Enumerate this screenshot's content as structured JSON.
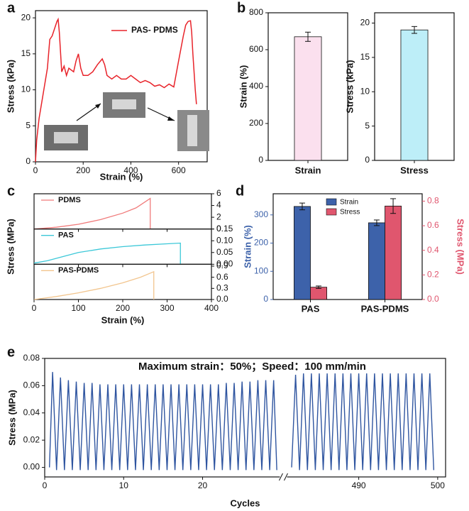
{
  "chart_data": [
    {
      "type": "line",
      "panel_label": "a",
      "xlabel": "Strain (%)",
      "ylabel": "Stress (kPa)",
      "xlim": [
        0,
        720
      ],
      "ylim": [
        0,
        21
      ],
      "xticks": [
        0,
        200,
        400,
        600
      ],
      "yticks": [
        0,
        5,
        10,
        15,
        20
      ],
      "legend": "upper right",
      "series": [
        {
          "name": "PAS- PDMS",
          "color": "#e8232a",
          "x": [
            0,
            5,
            15,
            30,
            50,
            60,
            70,
            80,
            90,
            95,
            100,
            110,
            120,
            130,
            140,
            160,
            170,
            180,
            190,
            200,
            220,
            240,
            260,
            280,
            290,
            300,
            320,
            340,
            360,
            380,
            400,
            420,
            440,
            460,
            480,
            500,
            520,
            540,
            560,
            580,
            600,
            620,
            630,
            640,
            650,
            655,
            660,
            670,
            675
          ],
          "values": [
            0,
            3,
            6,
            9,
            13,
            17,
            17.5,
            18.5,
            19.5,
            19.8,
            18,
            12.5,
            13.3,
            12,
            13,
            12.5,
            14,
            15,
            13,
            12,
            12,
            12.5,
            13.5,
            14.3,
            13.5,
            12,
            11.5,
            12,
            11.5,
            11.5,
            12,
            11.5,
            11,
            11.3,
            11,
            10.5,
            10.7,
            10.3,
            10.8,
            10.4,
            14,
            17.5,
            19,
            19.5,
            19.6,
            18,
            15,
            10,
            8
          ]
        }
      ]
    },
    {
      "type": "bar",
      "panel_label": "b",
      "ylabel": "Strain (%)",
      "categories": [
        "Strain"
      ],
      "values": [
        670
      ],
      "errors": [
        25
      ],
      "color": "#fbe0ee",
      "ylim": [
        0,
        800
      ],
      "yticks": [
        0,
        200,
        400,
        600,
        800
      ]
    },
    {
      "type": "bar",
      "ylabel": "Stress (kPa)",
      "categories": [
        "Stress"
      ],
      "values": [
        19
      ],
      "errors": [
        0.5
      ],
      "color": "#bdeef8",
      "ylim": [
        0,
        21.5
      ],
      "yticks": [
        0,
        5,
        10,
        15,
        20
      ]
    },
    {
      "type": "line_stack",
      "panel_label": "c",
      "xlabel": "Strain (%)",
      "ylabel": "Stress (MPa)",
      "xlim": [
        0,
        400
      ],
      "xticks": [
        0,
        100,
        200,
        300,
        400
      ],
      "subplots": [
        {
          "name": "PDMS",
          "color": "#f07a7a",
          "x": [
            0,
            50,
            100,
            150,
            200,
            230,
            262,
            262
          ],
          "values": [
            0,
            0.3,
            0.8,
            1.6,
            2.7,
            3.6,
            5.2,
            0
          ],
          "ylim": [
            0,
            6
          ],
          "yticks": [
            0,
            2,
            4,
            6
          ]
        },
        {
          "name": "PAS",
          "color": "#3cc8d8",
          "x": [
            0,
            30,
            60,
            100,
            150,
            200,
            250,
            300,
            330,
            330
          ],
          "values": [
            0.005,
            0.015,
            0.03,
            0.05,
            0.065,
            0.075,
            0.082,
            0.087,
            0.09,
            0
          ],
          "ylim": [
            0,
            0.15
          ],
          "yticks": [
            {
              "value": 0,
              "label": "0.00"
            },
            0.05,
            {
              "value": 0.1,
              "label": "0.10"
            },
            0.15
          ]
        },
        {
          "name": "PAS-PDMS",
          "color": "#f2c58e",
          "x": [
            0,
            50,
            100,
            150,
            200,
            240,
            270,
            270
          ],
          "values": [
            0,
            0.08,
            0.18,
            0.3,
            0.45,
            0.6,
            0.75,
            0
          ],
          "ylim": [
            0,
            0.95
          ],
          "yticks": [
            {
              "value": 0,
              "label": "0.0"
            },
            0.3,
            0.6,
            0.9
          ]
        }
      ]
    },
    {
      "type": "grouped_bar",
      "panel_label": "d",
      "ylabel": "Strain (%)",
      "y2label": "Stress (MPa)",
      "categories": [
        "PAS",
        "PAS-PDMS"
      ],
      "ylim": [
        0,
        375
      ],
      "yticks": [
        0,
        100,
        200,
        300
      ],
      "y2lim": [
        0,
        0.86
      ],
      "y2ticks": [
        {
          "value": 0,
          "label": "0.0"
        },
        0.2,
        0.4,
        0.6,
        0.8
      ],
      "legend": "upper center",
      "series": [
        {
          "name": "Strain",
          "color": "#3d62aa",
          "values": [
            330,
            272
          ],
          "errors": [
            12,
            10
          ]
        },
        {
          "name": "Stress",
          "color": "#e0566e",
          "values": [
            0.1,
            0.76
          ],
          "errors": [
            0.01,
            0.06
          ],
          "axis": "y2"
        }
      ]
    },
    {
      "type": "line",
      "panel_label": "e",
      "xlabel": "Cycles",
      "ylabel": "Stress (MPa)",
      "annotation": "Maximum strain：50%；Speed：100 mm/min",
      "axis_break": true,
      "xlim": [
        [
          0,
          29.7
        ],
        [
          481,
          501
        ]
      ],
      "xticks": [
        0,
        10,
        20,
        490,
        500
      ],
      "ylim": [
        -0.007,
        0.08
      ],
      "yticks": [
        {
          "value": 0,
          "label": "0.00"
        },
        0.02,
        0.04,
        0.06,
        {
          "value": 0.08,
          "label": "0.08"
        }
      ],
      "series": [
        {
          "color": "#2f55a0",
          "x": [
            0.6,
            1,
            1.5,
            2,
            2.5,
            3,
            3.5,
            4,
            4.5,
            5,
            5.5,
            6,
            6.5,
            7,
            7.5,
            8,
            8.5,
            9,
            9.5,
            10,
            10.5,
            11,
            11.5,
            12,
            12.5,
            13,
            13.5,
            14,
            14.5,
            15,
            15.5,
            16,
            16.5,
            17,
            17.5,
            18,
            18.5,
            19,
            19.5,
            20,
            20.5,
            21,
            21.5,
            22,
            22.5,
            23,
            23.5,
            24,
            24.5,
            25,
            25.5,
            26,
            26.5,
            27,
            27.5,
            28,
            28.5,
            29,
            29.4
          ],
          "values": [
            0,
            0.07,
            -0.002,
            0.066,
            -0.002,
            0.064,
            -0.002,
            0.063,
            -0.002,
            0.062,
            -0.002,
            0.062,
            -0.002,
            0.061,
            -0.002,
            0.061,
            -0.002,
            0.061,
            -0.002,
            0.061,
            -0.002,
            0.061,
            -0.002,
            0.061,
            -0.002,
            0.061,
            -0.002,
            0.061,
            -0.002,
            0.061,
            -0.002,
            0.061,
            -0.002,
            0.061,
            -0.002,
            0.061,
            -0.002,
            0.061,
            -0.002,
            0.061,
            -0.002,
            0.061,
            -0.002,
            0.061,
            -0.002,
            0.062,
            -0.002,
            0.062,
            -0.002,
            0.063,
            -0.002,
            0.063,
            -0.002,
            0.064,
            -0.002,
            0.064,
            -0.002,
            0.064,
            -0.002
          ]
        },
        {
          "color": "#2f55a0",
          "x": [
            481.5,
            482,
            482.5,
            483,
            483.5,
            484,
            484.5,
            485,
            485.5,
            486,
            486.5,
            487,
            487.5,
            488,
            488.5,
            489,
            489.5,
            490,
            490.5,
            491,
            491.5,
            492,
            492.5,
            493,
            493.5,
            494,
            494.5,
            495,
            495.5,
            496,
            496.5,
            497,
            497.5,
            498,
            498.5,
            499,
            499.5
          ],
          "values": [
            0,
            0.068,
            -0.002,
            0.069,
            -0.002,
            0.069,
            -0.002,
            0.069,
            -0.002,
            0.069,
            -0.002,
            0.069,
            -0.002,
            0.069,
            -0.002,
            0.069,
            -0.002,
            0.069,
            -0.002,
            0.069,
            -0.002,
            0.069,
            -0.002,
            0.069,
            -0.002,
            0.069,
            -0.002,
            0.069,
            -0.002,
            0.069,
            -0.002,
            0.069,
            -0.002,
            0.069,
            -0.002,
            0.069,
            -0.002
          ]
        }
      ]
    }
  ]
}
